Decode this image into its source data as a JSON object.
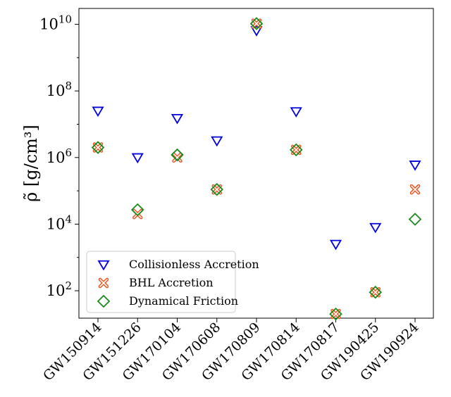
{
  "chart_data": {
    "type": "scatter",
    "title": "",
    "xlabel": "",
    "ylabel": "ρ̃ [g/cm³]",
    "y_scale": "log",
    "ylim": [
      15,
      30000000000
    ],
    "grid": false,
    "legend_position": "lower-left",
    "categories": [
      "GW150914",
      "GW151226",
      "GW170104",
      "GW170608",
      "GW170809",
      "GW170814",
      "GW170817",
      "GW190425",
      "GW190924"
    ],
    "y_ticks": [
      {
        "value": 100,
        "label": "10",
        "exp": "2"
      },
      {
        "value": 10000,
        "label": "10",
        "exp": "4"
      },
      {
        "value": 1000000,
        "label": "10",
        "exp": "6"
      },
      {
        "value": 100000000,
        "label": "10",
        "exp": "8"
      },
      {
        "value": 10000000000,
        "label": "10",
        "exp": "10"
      }
    ],
    "series": [
      {
        "name": "Collisionless Accretion",
        "marker": "triangle-down",
        "color": "#0000dd",
        "values": [
          25000000,
          1000000,
          15000000,
          3200000,
          6500000000,
          24000000,
          2500,
          8000,
          600000
        ]
      },
      {
        "name": "BHL Accretion",
        "marker": "x",
        "color": "#e8541e",
        "values": [
          2000000,
          20000,
          1000000,
          110000,
          10500000000,
          1700000,
          20,
          90,
          110000
        ]
      },
      {
        "name": "Dynamical Friction",
        "marker": "diamond",
        "color": "#1a8a1a",
        "values": [
          2000000,
          27000,
          1200000,
          110000,
          10500000000,
          1700000,
          20,
          90,
          14000
        ]
      }
    ]
  }
}
